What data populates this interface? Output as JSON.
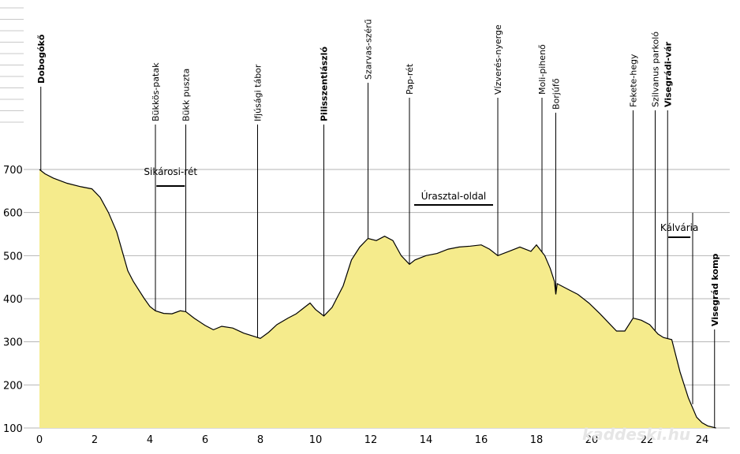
{
  "chart_data": {
    "type": "area",
    "title": "",
    "xlabel": "",
    "ylabel": "",
    "xlim": [
      0,
      25
    ],
    "ylim": [
      100,
      700
    ],
    "x_ticks": [
      0,
      2,
      4,
      6,
      8,
      10,
      12,
      14,
      16,
      18,
      20,
      22,
      24
    ],
    "y_ticks": [
      100,
      200,
      300,
      400,
      500,
      600,
      700
    ],
    "grid": "horizontal",
    "colors": {
      "fill": "#f5eb8c",
      "line": "#000000",
      "grid": "#b4b4b4"
    },
    "series": [
      {
        "x": [
          0,
          0.2,
          0.5,
          1.0,
          1.5,
          1.9,
          2.2,
          2.5,
          2.8,
          3.0,
          3.2,
          3.4,
          3.6,
          3.8,
          4.0,
          4.2,
          4.5,
          4.8,
          5.1,
          5.3,
          5.6,
          6.0,
          6.3,
          6.6,
          7.0,
          7.4,
          7.8,
          8.0,
          8.3,
          8.6,
          9.0,
          9.3,
          9.6,
          9.8,
          10.0,
          10.3,
          10.6,
          11.0,
          11.3,
          11.6,
          11.9,
          12.2,
          12.5,
          12.8,
          13.1,
          13.4,
          13.6,
          14.0,
          14.4,
          14.8,
          15.2,
          15.6,
          16.0,
          16.3,
          16.6,
          17.0,
          17.4,
          17.8,
          18.0,
          18.3,
          18.5,
          18.65,
          18.7,
          18.75,
          18.9,
          19.2,
          19.5,
          19.9,
          20.3,
          20.6,
          20.9,
          21.2,
          21.5,
          21.8,
          22.1,
          22.4,
          22.6,
          22.9,
          23.2,
          23.5,
          23.8,
          24.0,
          24.2,
          24.5
        ],
        "y": [
          700,
          690,
          680,
          668,
          660,
          655,
          635,
          600,
          555,
          510,
          465,
          440,
          420,
          400,
          382,
          372,
          366,
          365,
          372,
          370,
          355,
          338,
          328,
          336,
          332,
          320,
          312,
          308,
          322,
          340,
          355,
          365,
          380,
          390,
          375,
          360,
          380,
          430,
          490,
          520,
          540,
          535,
          545,
          535,
          500,
          480,
          490,
          500,
          505,
          515,
          520,
          522,
          525,
          515,
          500,
          510,
          520,
          510,
          525,
          500,
          470,
          440,
          410,
          435,
          430,
          420,
          410,
          390,
          365,
          345,
          325,
          325,
          355,
          350,
          340,
          318,
          310,
          305,
          230,
          170,
          125,
          112,
          105,
          100
        ]
      }
    ],
    "waypoints": [
      {
        "label": "Dobogókő",
        "x": 0.05,
        "bold": true
      },
      {
        "label": "Bükkös-patak",
        "x": 4.2,
        "bold": false
      },
      {
        "label": "Bükk puszta",
        "x": 5.3,
        "bold": false
      },
      {
        "label": "Ifjúsági tábor",
        "x": 7.9,
        "bold": false
      },
      {
        "label": "Pilisszentlászló",
        "x": 10.3,
        "bold": true
      },
      {
        "label": "Szarvas-szérű",
        "x": 11.9,
        "bold": false
      },
      {
        "label": "Pap-rét",
        "x": 13.4,
        "bold": false
      },
      {
        "label": "Vízverés-nyerge",
        "x": 16.6,
        "bold": false
      },
      {
        "label": "Moli-pihenő",
        "x": 18.2,
        "bold": false
      },
      {
        "label": "Borjúfő",
        "x": 18.7,
        "bold": false
      },
      {
        "label": "Fekete-hegy",
        "x": 21.5,
        "bold": false
      },
      {
        "label": "Szilvanus parkoló",
        "x": 22.3,
        "bold": false
      },
      {
        "label": "Visegrádi-vár",
        "x": 22.75,
        "bold": true
      },
      {
        "label": "Visegrád komp",
        "x": 24.45,
        "bold": true
      }
    ],
    "segments": [
      {
        "label": "Sikárosi-rét",
        "x1": 4.2,
        "x2": 5.3
      },
      {
        "label": "Úrasztal-oldal",
        "x1": 13.4,
        "x2": 16.6
      },
      {
        "label": "Kálvária",
        "x1": 22.75,
        "x2": 23.6
      }
    ],
    "watermark": "kaddeski.hu"
  }
}
